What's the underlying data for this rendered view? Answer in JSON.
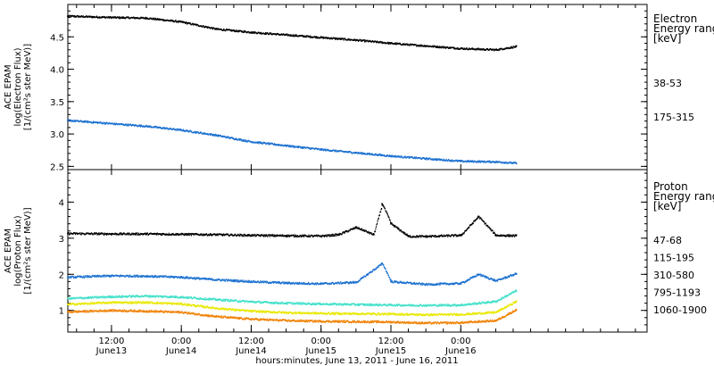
{
  "figure": {
    "xlabel": "hours:minutes, June 13, 2011 - June 16, 2011",
    "x_ticks": [
      {
        "time": "2011-06-13T12:00",
        "label": "12:00",
        "sublabel": "June13"
      },
      {
        "time": "2011-06-14T00:00",
        "label": "0:00",
        "sublabel": "June14"
      },
      {
        "time": "2011-06-14T12:00",
        "label": "12:00",
        "sublabel": "June14"
      },
      {
        "time": "2011-06-15T00:00",
        "label": "0:00",
        "sublabel": "June15"
      },
      {
        "time": "2011-06-15T12:00",
        "label": "12:00",
        "sublabel": "June15"
      },
      {
        "time": "2011-06-16T00:00",
        "label": "0:00",
        "sublabel": "June16"
      }
    ],
    "xlim": [
      "2011-06-13T04:30",
      "2011-06-17T08:00"
    ]
  },
  "chart_data": [
    {
      "type": "scatter",
      "panel": "electron",
      "ylabel_lines": [
        "ACE EPAM",
        "log(Electron Flux)",
        "[1/(cm²s ster MeV)]"
      ],
      "ylim": [
        2.45,
        5.0
      ],
      "y_ticks": [
        "2.5",
        "3.0",
        "3.5",
        "4.0",
        "4.5"
      ],
      "legend_title_lines": [
        "Electron",
        "Energy ranges",
        "[keV]"
      ],
      "series": [
        {
          "name": "38-53",
          "color": "#000000",
          "x": [
            "2011-06-13T04:30",
            "2011-06-13T12:00",
            "2011-06-13T18:00",
            "2011-06-14T00:00",
            "2011-06-14T06:00",
            "2011-06-14T12:00",
            "2011-06-14T18:00",
            "2011-06-15T00:00",
            "2011-06-15T06:00",
            "2011-06-15T12:00",
            "2011-06-15T18:00",
            "2011-06-16T00:00",
            "2011-06-16T06:00",
            "2011-06-16T09:30"
          ],
          "values": [
            4.82,
            4.8,
            4.79,
            4.73,
            4.62,
            4.57,
            4.53,
            4.49,
            4.45,
            4.4,
            4.36,
            4.32,
            4.3,
            4.35
          ]
        },
        {
          "name": "175-315",
          "color": "#1a70d0",
          "x": [
            "2011-06-13T04:30",
            "2011-06-13T12:00",
            "2011-06-13T18:00",
            "2011-06-14T00:00",
            "2011-06-14T06:00",
            "2011-06-14T12:00",
            "2011-06-14T18:00",
            "2011-06-15T00:00",
            "2011-06-15T06:00",
            "2011-06-15T12:00",
            "2011-06-15T18:00",
            "2011-06-16T00:00",
            "2011-06-16T06:00",
            "2011-06-16T09:30"
          ],
          "values": [
            3.21,
            3.16,
            3.12,
            3.06,
            2.98,
            2.88,
            2.82,
            2.76,
            2.71,
            2.66,
            2.62,
            2.58,
            2.57,
            2.55
          ]
        }
      ]
    },
    {
      "type": "scatter",
      "panel": "proton",
      "ylabel_lines": [
        "ACE EPAM",
        "log(Proton Flux)",
        "[1/(cm²s ster MeV)]"
      ],
      "ylim": [
        0.4,
        4.9
      ],
      "y_ticks": [
        "1",
        "2",
        "3",
        "4"
      ],
      "legend_title_lines": [
        "Proton",
        "Energy ranges",
        "[keV]"
      ],
      "series": [
        {
          "name": "47-68",
          "color": "#000000",
          "x": [
            "2011-06-13T04:30",
            "2011-06-13T12:00",
            "2011-06-13T18:00",
            "2011-06-14T00:00",
            "2011-06-14T06:00",
            "2011-06-14T12:00",
            "2011-06-14T18:00",
            "2011-06-15T00:00",
            "2011-06-15T03:00",
            "2011-06-15T06:00",
            "2011-06-15T09:00",
            "2011-06-15T10:30",
            "2011-06-15T12:00",
            "2011-06-15T15:00",
            "2011-06-15T18:00",
            "2011-06-16T00:00",
            "2011-06-16T03:00",
            "2011-06-16T06:00",
            "2011-06-16T09:30"
          ],
          "values": [
            3.13,
            3.12,
            3.12,
            3.11,
            3.1,
            3.08,
            3.07,
            3.06,
            3.1,
            3.3,
            3.1,
            3.95,
            3.4,
            3.05,
            3.05,
            3.08,
            3.6,
            3.08,
            3.07
          ]
        },
        {
          "name": "115-195",
          "color": "#1a70d0",
          "x": [
            "2011-06-13T04:30",
            "2011-06-13T12:00",
            "2011-06-13T18:00",
            "2011-06-14T00:00",
            "2011-06-14T06:00",
            "2011-06-14T12:00",
            "2011-06-14T18:00",
            "2011-06-15T00:00",
            "2011-06-15T06:00",
            "2011-06-15T10:30",
            "2011-06-15T12:00",
            "2011-06-15T18:00",
            "2011-06-16T00:00",
            "2011-06-16T03:00",
            "2011-06-16T06:00",
            "2011-06-16T09:30"
          ],
          "values": [
            1.92,
            1.96,
            1.95,
            1.92,
            1.85,
            1.8,
            1.76,
            1.74,
            1.78,
            2.3,
            1.8,
            1.72,
            1.75,
            2.0,
            1.82,
            2.02
          ]
        },
        {
          "name": "310-580",
          "color": "#40e0c8",
          "x": [
            "2011-06-13T04:30",
            "2011-06-13T12:00",
            "2011-06-13T18:00",
            "2011-06-14T00:00",
            "2011-06-14T06:00",
            "2011-06-14T12:00",
            "2011-06-14T18:00",
            "2011-06-15T00:00",
            "2011-06-15T12:00",
            "2011-06-15T18:00",
            "2011-06-16T00:00",
            "2011-06-16T06:00",
            "2011-06-16T09:30"
          ],
          "values": [
            1.33,
            1.38,
            1.4,
            1.37,
            1.3,
            1.24,
            1.2,
            1.18,
            1.15,
            1.14,
            1.15,
            1.25,
            1.55
          ]
        },
        {
          "name": "795-1193",
          "color": "#e8e800",
          "x": [
            "2011-06-13T04:30",
            "2011-06-13T12:00",
            "2011-06-13T18:00",
            "2011-06-14T00:00",
            "2011-06-14T06:00",
            "2011-06-14T12:00",
            "2011-06-14T18:00",
            "2011-06-15T00:00",
            "2011-06-15T12:00",
            "2011-06-15T18:00",
            "2011-06-16T00:00",
            "2011-06-16T06:00",
            "2011-06-16T09:30"
          ],
          "values": [
            1.17,
            1.22,
            1.22,
            1.18,
            1.06,
            0.98,
            0.94,
            0.92,
            0.9,
            0.88,
            0.89,
            0.95,
            1.25
          ]
        },
        {
          "name": "1060-1900",
          "color": "#f08000",
          "x": [
            "2011-06-13T04:30",
            "2011-06-13T12:00",
            "2011-06-13T18:00",
            "2011-06-14T00:00",
            "2011-06-14T06:00",
            "2011-06-14T12:00",
            "2011-06-14T18:00",
            "2011-06-15T00:00",
            "2011-06-15T12:00",
            "2011-06-15T18:00",
            "2011-06-16T00:00",
            "2011-06-16T06:00",
            "2011-06-16T09:30"
          ],
          "values": [
            0.96,
            1.0,
            0.98,
            0.95,
            0.83,
            0.76,
            0.72,
            0.7,
            0.68,
            0.65,
            0.66,
            0.72,
            1.02
          ]
        }
      ]
    }
  ]
}
